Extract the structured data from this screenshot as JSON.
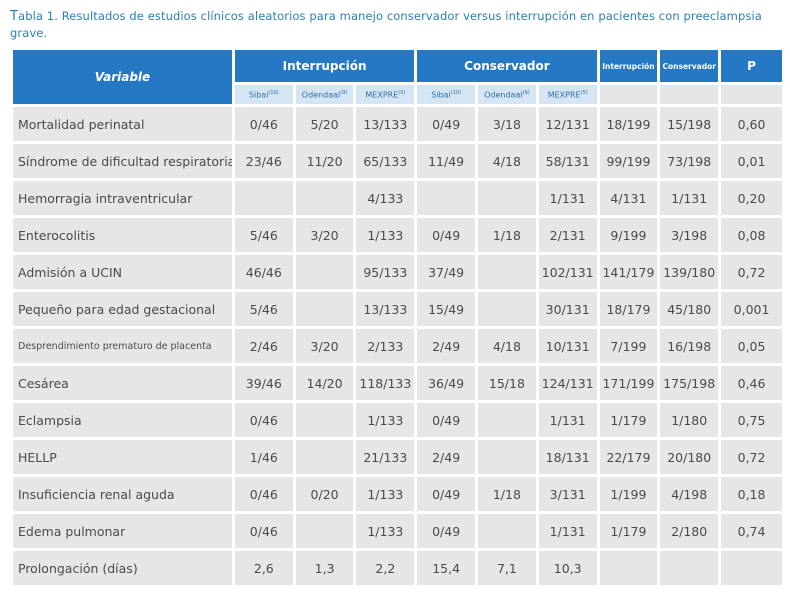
{
  "caption": {
    "first": "T",
    "rest": "abla 1. Resultados de estudios clínicos aleatorios para manejo conservador versus interrupción en pacientes con preeclampsia grave."
  },
  "header": {
    "variable": "Variable",
    "interrupcion": "Interrupción",
    "conservador": "Conservador",
    "interrupcion_total": "Interrupción",
    "conservador_total": "Conservador",
    "p": "P"
  },
  "subheader": [
    {
      "name": "Sibai",
      "ref": "(10)"
    },
    {
      "name": "Odendaal",
      "ref": "(9)"
    },
    {
      "name": "MEXPRE",
      "ref": "(5)"
    },
    {
      "name": "Sibai",
      "ref": "(10)"
    },
    {
      "name": "Odendaal",
      "ref": "(9)"
    },
    {
      "name": "MEXPRE",
      "ref": "(5)"
    }
  ],
  "rows": [
    {
      "label": "Mortalidad perinatal",
      "cells": [
        "0/46",
        "5/20",
        "13/133",
        "0/49",
        "3/18",
        "12/131",
        "18/199",
        "15/198",
        "0,60"
      ]
    },
    {
      "label": "Síndrome de dificultad respiratoria",
      "cells": [
        "23/46",
        "11/20",
        "65/133",
        "11/49",
        "4/18",
        "58/131",
        "99/199",
        "73/198",
        "0,01"
      ]
    },
    {
      "label": "Hemorragia intraventricular",
      "cells": [
        "",
        "",
        "4/133",
        "",
        "",
        "1/131",
        "4/131",
        "1/131",
        "0,20"
      ]
    },
    {
      "label": "Enterocolitis",
      "cells": [
        "5/46",
        "3/20",
        "1/133",
        "0/49",
        "1/18",
        "2/131",
        "9/199",
        "3/198",
        "0,08"
      ]
    },
    {
      "label": "Admisión a UCIN",
      "cells": [
        "46/46",
        "",
        "95/133",
        "37/49",
        "",
        "102/131",
        "141/179",
        "139/180",
        "0,72"
      ]
    },
    {
      "label": "Pequeño para edad gestacional",
      "cells": [
        "5/46",
        "",
        "13/133",
        "15/49",
        "",
        "30/131",
        "18/179",
        "45/180",
        "0,001"
      ]
    },
    {
      "label": "Desprendimiento prematuro de placenta",
      "small": true,
      "cells": [
        "2/46",
        "3/20",
        "2/133",
        "2/49",
        "4/18",
        "10/131",
        "7/199",
        "16/198",
        "0,05"
      ]
    },
    {
      "label": "Cesárea",
      "cells": [
        "39/46",
        "14/20",
        "118/133",
        "36/49",
        "15/18",
        "124/131",
        "171/199",
        "175/198",
        "0,46"
      ]
    },
    {
      "label": "Eclampsia",
      "cells": [
        "0/46",
        "",
        "1/133",
        "0/49",
        "",
        "1/131",
        "1/179",
        "1/180",
        "0,75"
      ]
    },
    {
      "label": "HELLP",
      "cells": [
        "1/46",
        "",
        "21/133",
        "2/49",
        "",
        "18/131",
        "22/179",
        "20/180",
        "0,72"
      ]
    },
    {
      "label": "Insuficiencia renal aguda",
      "cells": [
        "0/46",
        "0/20",
        "1/133",
        "0/49",
        "1/18",
        "3/131",
        "1/199",
        "4/198",
        "0,18"
      ]
    },
    {
      "label": "Edema pulmonar",
      "cells": [
        "0/46",
        "",
        "1/133",
        "0/49",
        "",
        "1/131",
        "1/179",
        "2/180",
        "0,74"
      ]
    },
    {
      "label": "Prolongación (días)",
      "cells": [
        "2,6",
        "1,3",
        "2,2",
        "15,4",
        "7,1",
        "10,3",
        "",
        "",
        ""
      ]
    }
  ]
}
